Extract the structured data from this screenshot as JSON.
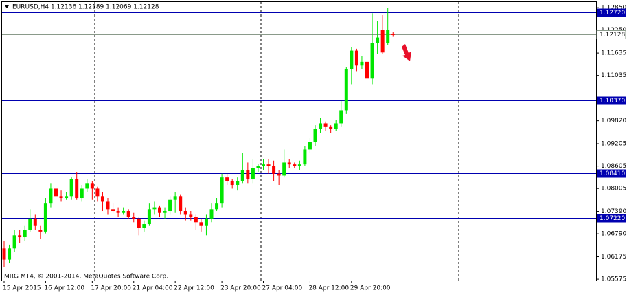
{
  "chart_data": {
    "type": "candlestick",
    "title": "EURUSD,H4  1.12136 1.12189 1.12069 1.12128",
    "annotation": "MRG MT4, © 2001-2014, MetaQuotes Software Corp.",
    "up_color": "#00e600",
    "down_color": "#ff0000",
    "categories": [
      "15 Apr 2015",
      null,
      null,
      null,
      null,
      null,
      null,
      null,
      "16 Apr 12:00",
      null,
      null,
      null,
      null,
      null,
      null,
      null,
      null,
      "17 Apr 20:00",
      null,
      null,
      null,
      null,
      null,
      null,
      null,
      "21 Apr 04:00",
      null,
      null,
      null,
      null,
      null,
      null,
      null,
      "22 Apr 12:00",
      null,
      null,
      null,
      null,
      null,
      null,
      null,
      null,
      "23 Apr 20:00",
      null,
      null,
      null,
      null,
      null,
      null,
      null,
      "27 Apr 04:00",
      null,
      null,
      null,
      null,
      null,
      null,
      null,
      null,
      "28 Apr 12:00",
      null,
      null,
      null,
      null,
      null,
      null,
      null,
      "29 Apr 20:00",
      null,
      null,
      null,
      null,
      null,
      null,
      null,
      null
    ],
    "open": [
      1.064,
      1.061,
      1.064,
      1.0675,
      1.067,
      1.069,
      1.072,
      1.069,
      1.0685,
      1.076,
      1.08,
      1.078,
      1.0775,
      1.078,
      1.0825,
      1.0775,
      1.08,
      1.0815,
      1.08,
      1.078,
      1.0765,
      1.0745,
      1.074,
      1.0735,
      1.074,
      1.0725,
      1.072,
      1.0695,
      1.0705,
      1.0745,
      1.075,
      1.0735,
      1.074,
      1.077,
      1.078,
      1.074,
      1.073,
      1.0725,
      1.071,
      1.07,
      1.072,
      1.0745,
      1.076,
      1.083,
      1.082,
      1.081,
      1.082,
      1.085,
      1.0825,
      1.0855,
      1.086,
      1.0865,
      1.086,
      1.084,
      1.0835,
      1.087,
      1.0865,
      1.086,
      1.0865,
      1.0905,
      1.0925,
      1.096,
      1.0975,
      1.0965,
      1.096,
      1.0975,
      1.101,
      1.112,
      1.117,
      1.113,
      1.114,
      1.1095,
      1.119,
      1.1225,
      1.119,
      1.12136
    ],
    "high": [
      1.066,
      1.065,
      1.069,
      1.069,
      1.07,
      1.0745,
      1.073,
      1.07,
      1.0775,
      1.0815,
      1.081,
      1.0795,
      1.079,
      1.083,
      1.0845,
      1.081,
      1.0825,
      1.082,
      1.0805,
      1.079,
      1.0775,
      1.076,
      1.075,
      1.075,
      1.0745,
      1.0735,
      1.0725,
      1.0715,
      1.076,
      1.0765,
      1.0755,
      1.075,
      1.078,
      1.079,
      1.0785,
      1.075,
      1.074,
      1.073,
      1.072,
      1.073,
      1.076,
      1.0775,
      1.084,
      1.084,
      1.0825,
      1.083,
      1.0895,
      1.087,
      1.088,
      1.0865,
      1.088,
      1.088,
      1.0875,
      1.085,
      1.0905,
      1.088,
      1.087,
      1.0875,
      1.0915,
      1.0935,
      1.097,
      1.099,
      1.098,
      1.097,
      1.0985,
      1.1035,
      1.1125,
      1.118,
      1.1175,
      1.1155,
      1.1145,
      1.127,
      1.125,
      1.1265,
      1.1285,
      1.12189
    ],
    "low": [
      1.059,
      1.06,
      1.063,
      1.0655,
      1.066,
      1.0685,
      1.069,
      1.0665,
      1.068,
      1.075,
      1.077,
      1.0765,
      1.077,
      1.077,
      1.077,
      1.0765,
      1.079,
      1.077,
      1.0765,
      1.074,
      1.073,
      1.0735,
      1.0725,
      1.073,
      1.072,
      1.071,
      1.0675,
      1.0685,
      1.07,
      1.073,
      1.0725,
      1.072,
      1.073,
      1.0735,
      1.073,
      1.0715,
      1.0715,
      1.069,
      1.0685,
      1.0675,
      1.071,
      1.074,
      1.075,
      1.081,
      1.08,
      1.0795,
      1.0815,
      1.0815,
      1.0815,
      1.0845,
      1.085,
      1.084,
      1.082,
      1.081,
      1.083,
      1.0855,
      1.0855,
      1.085,
      1.086,
      1.0895,
      1.0915,
      1.095,
      1.0955,
      1.095,
      1.0955,
      1.0965,
      1.1,
      1.108,
      1.1115,
      1.112,
      1.108,
      1.108,
      1.116,
      1.116,
      1.1185,
      1.12069
    ],
    "close": [
      1.061,
      1.064,
      1.0675,
      1.067,
      1.069,
      1.072,
      1.07,
      1.0685,
      1.076,
      1.08,
      1.078,
      1.0775,
      1.078,
      1.0825,
      1.0775,
      1.08,
      1.0815,
      1.08,
      1.078,
      1.0765,
      1.0745,
      1.074,
      1.0735,
      1.074,
      1.0725,
      1.072,
      1.0695,
      1.0705,
      1.0745,
      1.075,
      1.0735,
      1.074,
      1.077,
      1.078,
      1.074,
      1.073,
      1.0725,
      1.071,
      1.07,
      1.072,
      1.0745,
      1.076,
      1.083,
      1.082,
      1.081,
      1.082,
      1.085,
      1.0825,
      1.0855,
      1.086,
      1.0865,
      1.086,
      1.084,
      1.0835,
      1.087,
      1.0865,
      1.086,
      1.0865,
      1.0905,
      1.0925,
      1.096,
      1.0975,
      1.0965,
      1.096,
      1.0975,
      1.101,
      1.112,
      1.117,
      1.113,
      1.114,
      1.1095,
      1.119,
      1.1205,
      1.1165,
      1.1225,
      1.12128
    ],
    "ylim": [
      1.0554,
      1.13
    ],
    "yticks": [
      {
        "value": 1.1285,
        "label": "1.12850"
      },
      {
        "value": 1.1225,
        "label": "1.12250"
      },
      {
        "value": 1.11635,
        "label": "1.11635"
      },
      {
        "value": 1.11035,
        "label": "1.11035"
      },
      {
        "value": 1.0982,
        "label": "1.09820"
      },
      {
        "value": 1.09205,
        "label": "1.09205"
      },
      {
        "value": 1.08605,
        "label": "1.08605"
      },
      {
        "value": 1.08005,
        "label": "1.08005"
      },
      {
        "value": 1.0739,
        "label": "1.07390"
      },
      {
        "value": 1.0679,
        "label": "1.06790"
      },
      {
        "value": 1.06175,
        "label": "1.06175"
      },
      {
        "value": 1.05575,
        "label": "1.05575"
      }
    ],
    "levels": [
      {
        "value": 1.1272,
        "label": "1.12720"
      },
      {
        "value": 1.1037,
        "label": "1.10370"
      },
      {
        "value": 1.0841,
        "label": "1.08410"
      },
      {
        "value": 1.0722,
        "label": "1.07220"
      }
    ],
    "level_color": "#0000b0",
    "current_price": {
      "value": 1.12128,
      "label": "1.12128"
    }
  }
}
